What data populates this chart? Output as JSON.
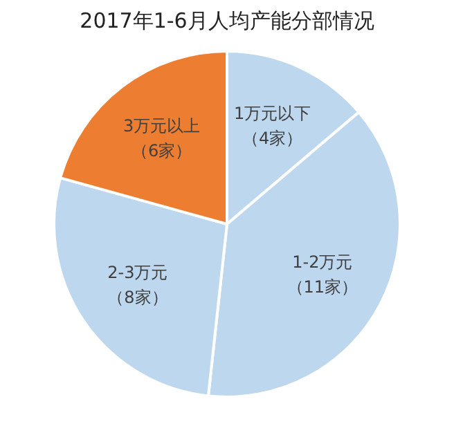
{
  "chart_data": {
    "type": "pie",
    "title": "2017年1-6月人均产能分部情况",
    "categories": [
      "1万元以下",
      "1-2万元",
      "2-3万元",
      "3万元以上"
    ],
    "values": [
      4,
      11,
      8,
      6
    ],
    "value_labels": [
      "（4家）",
      "（11家）",
      "（8家）",
      "（6家）"
    ],
    "colors": [
      "#bdd7ee",
      "#bdd7ee",
      "#bdd7ee",
      "#ed7d31"
    ],
    "legend": false
  }
}
